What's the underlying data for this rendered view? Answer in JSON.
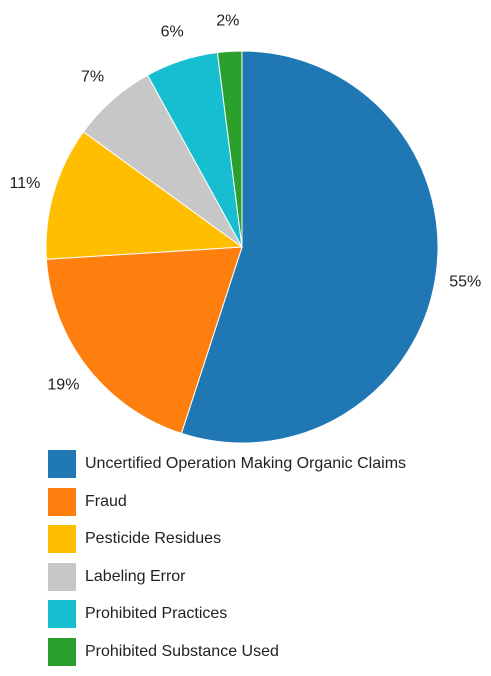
{
  "chart_data": {
    "type": "pie",
    "start_angle_deg": 0,
    "direction": "clockwise",
    "slices": [
      {
        "label": "Uncertified Operation Making Organic Claims",
        "value": 55,
        "display": "55%",
        "color": "#1f77b4"
      },
      {
        "label": "Fraud",
        "value": 19,
        "display": "19%",
        "color": "#ff7f0e"
      },
      {
        "label": "Pesticide Residues",
        "value": 11,
        "display": "11%",
        "color": "#ffbf00"
      },
      {
        "label": "Labeling Error",
        "value": 7,
        "display": "7%",
        "color": "#c7c7c7"
      },
      {
        "label": "Prohibited Practices",
        "value": 6,
        "display": "6%",
        "color": "#17becf"
      },
      {
        "label": "Prohibited Substance Used",
        "value": 2,
        "display": "2%",
        "color": "#2ca02c"
      }
    ],
    "legend": {
      "position": "bottom"
    }
  }
}
